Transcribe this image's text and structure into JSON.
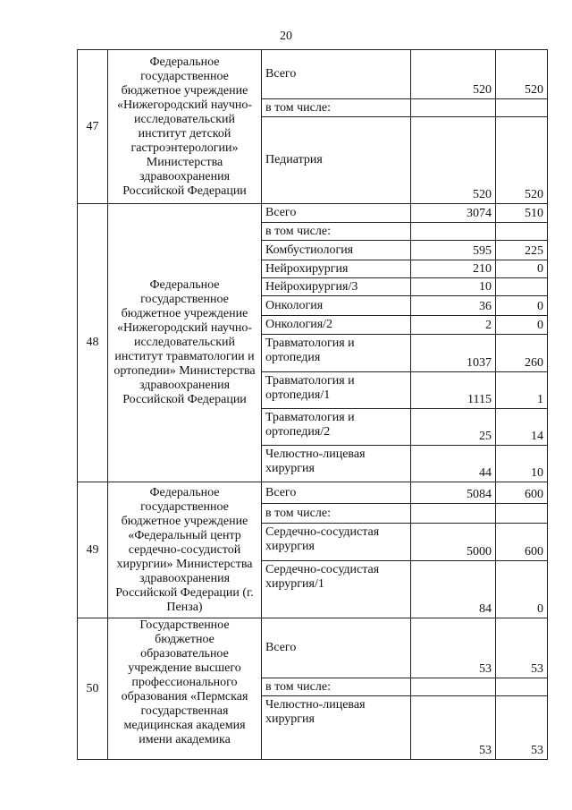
{
  "page_number": "20",
  "rows": [
    {
      "number": "47",
      "organization": "Федеральное государственное бюджетное учреждение «Нижегородский научно-исследовательский институт детской гастроэнтерологии» Министерства здравоохранения Российской Федерации",
      "items": [
        {
          "profile": "Всего",
          "col1": "520",
          "col2": "520"
        },
        {
          "profile": "в том числе:",
          "col1": "",
          "col2": ""
        },
        {
          "profile": "Педиатрия",
          "col1": "520",
          "col2": "520"
        }
      ]
    },
    {
      "number": "48",
      "organization": "Федеральное государственное бюджетное учреждение «Нижегородский научно-исследовательский институт травматологии и ортопедии» Министерства здравоохранения Российской Федерации",
      "items": [
        {
          "profile": "Всего",
          "col1": "3074",
          "col2": "510"
        },
        {
          "profile": "в том числе:",
          "col1": "",
          "col2": ""
        },
        {
          "profile": "Комбустиология",
          "col1": "595",
          "col2": "225"
        },
        {
          "profile": "Нейрохирургия",
          "col1": "210",
          "col2": "0"
        },
        {
          "profile": "Нейрохирургия/3",
          "col1": "10",
          "col2": ""
        },
        {
          "profile": "Онкология",
          "col1": "36",
          "col2": "0"
        },
        {
          "profile": "Онкология/2",
          "col1": "2",
          "col2": "0"
        },
        {
          "profile": "Травматология и ортопедия",
          "col1": "1037",
          "col2": "260"
        },
        {
          "profile": "Травматология и ортопедия/1",
          "col1": "1115",
          "col2": "1"
        },
        {
          "profile": "Травматология и ортопедия/2",
          "col1": "25",
          "col2": "14"
        },
        {
          "profile": "Челюстно-лицевая хирургия",
          "col1": "44",
          "col2": "10"
        }
      ]
    },
    {
      "number": "49",
      "organization": "Федеральное государственное бюджетное учреждение «Федеральный центр сердечно-сосудистой хирургии» Министерства здравоохранения Российской Федерации (г. Пенза)",
      "items": [
        {
          "profile": "Всего",
          "col1": "5084",
          "col2": "600"
        },
        {
          "profile": "в том числе:",
          "col1": "",
          "col2": ""
        },
        {
          "profile": "Сердечно-сосудистая хирургия",
          "col1": "5000",
          "col2": "600"
        },
        {
          "profile": "Сердечно-сосудистая хирургия/1",
          "col1": "84",
          "col2": "0"
        }
      ]
    },
    {
      "number": "50",
      "organization": "Государственное бюджетное образовательное учреждение высшего профессионального образования «Пермская государственная медицинская академия имени академика",
      "items": [
        {
          "profile": "Всего",
          "col1": "53",
          "col2": "53"
        },
        {
          "profile": "в том числе:",
          "col1": "",
          "col2": ""
        },
        {
          "profile": "Челюстно-лицевая хирургия",
          "col1": "53",
          "col2": "53"
        }
      ]
    }
  ]
}
